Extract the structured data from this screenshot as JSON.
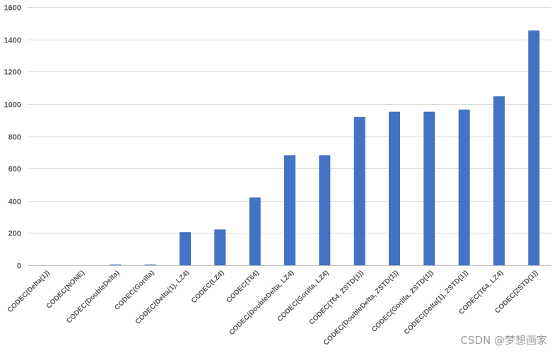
{
  "chart_data": {
    "type": "bar",
    "title": "",
    "xlabel": "",
    "ylabel": "",
    "ylim": [
      0,
      1600
    ],
    "yticks": [
      0,
      200,
      400,
      600,
      800,
      1000,
      1200,
      1400,
      1600
    ],
    "grid": true,
    "bar_color": "#4472C4",
    "categories": [
      "CODEC(Delta(1))",
      "CODEC(NONE)",
      "CODEC(DoubleDelta)",
      "CODEC(Gorilla)",
      "CODEC(Delta(1), LZ4)",
      "CODEC(LZ4)",
      "CODEC(T64)",
      "CODEC(DoubleDelta, LZ4)",
      "CODEC(Gorilla, LZ4)",
      "CODEC(T64, ZSTD(1))",
      "CODEC(DoubleDelta, ZSTD(1))",
      "CODEC(Gorilla, ZSTD(1))",
      "CODEC(Delta(1), ZSTD(1))",
      "CODEC(T64, LZ4)",
      "CODEC(ZSTD(1))"
    ],
    "values": [
      0,
      0,
      5,
      5,
      205,
      222,
      420,
      682,
      682,
      920,
      952,
      952,
      965,
      1047,
      1455
    ]
  },
  "watermark": "CSDN @梦想画家"
}
